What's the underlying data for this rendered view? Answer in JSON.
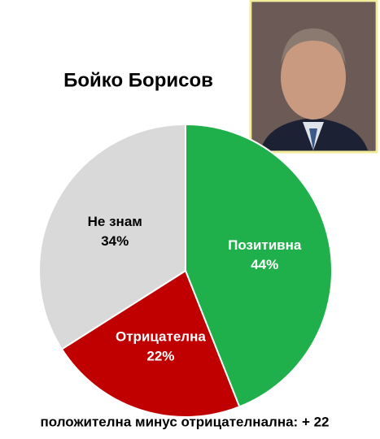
{
  "chart_data": {
    "type": "pie",
    "title": "Бойко Борисов",
    "categories": [
      "Позитивна",
      "Отрицателна",
      "Не знам"
    ],
    "values": [
      44,
      22,
      34
    ],
    "value_labels": [
      "44%",
      "22%",
      "34%"
    ],
    "colors": [
      "#1fb04b",
      "#c00000",
      "#d9d9d9"
    ],
    "footer": "положителна минус отрицателнална: + 22"
  }
}
